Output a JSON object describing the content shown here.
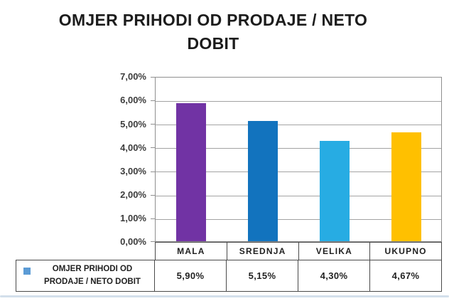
{
  "page": {
    "background": "#ffffff",
    "bottom_edge_color": "#d3dfeb"
  },
  "chart_data": {
    "type": "bar",
    "title": "OMJER PRIHODI OD PRODAJE / NETO DOBIT",
    "categories": [
      "MALA",
      "SREDNJA",
      "VELIKA",
      "UKUPNO"
    ],
    "series": [
      {
        "name": "OMJER PRIHODI OD PRODAJE / NETO DOBIT",
        "values": [
          5.9,
          5.15,
          4.3,
          4.67
        ]
      }
    ],
    "value_labels": [
      "5,90%",
      "5,15%",
      "4,30%",
      "4,67%"
    ],
    "ytick_labels": [
      "7,00%",
      "6,00%",
      "5,00%",
      "4,00%",
      "3,00%",
      "2,00%",
      "1,00%",
      "0,00%"
    ],
    "ylim": [
      0,
      7
    ],
    "ytick_step": 1,
    "grid": true,
    "legend_position": "bottom-table",
    "bar_colors": [
      "#7133A4",
      "#1273BE",
      "#27ACE3",
      "#FFC000"
    ],
    "legend_marker_color": "#5B9BD5",
    "xlabel": "",
    "ylabel": ""
  }
}
